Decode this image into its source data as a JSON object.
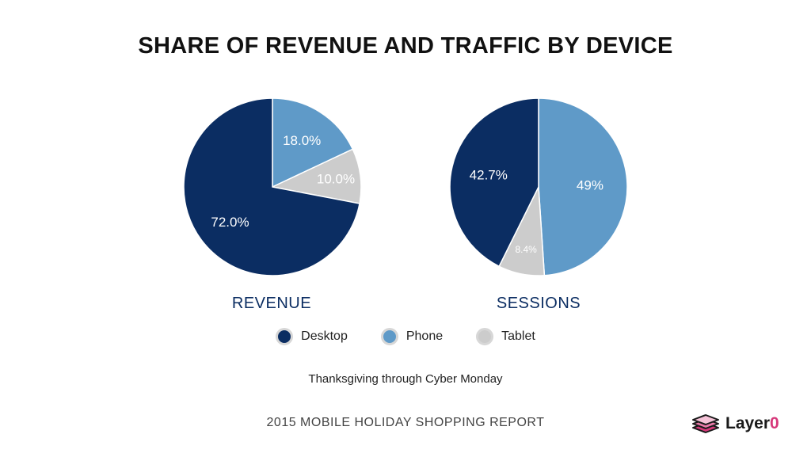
{
  "title": "SHARE OF REVENUE AND TRAFFIC BY DEVICE",
  "chart_data": [
    {
      "type": "pie",
      "title": "REVENUE",
      "slices": [
        {
          "label": "Phone",
          "value": 18.0,
          "display": "18.0%",
          "color": "#5f9ac8"
        },
        {
          "label": "Tablet",
          "value": 10.0,
          "display": "10.0%",
          "color": "#cccccc"
        },
        {
          "label": "Desktop",
          "value": 72.0,
          "display": "72.0%",
          "color": "#0b2d62"
        }
      ]
    },
    {
      "type": "pie",
      "title": "SESSIONS",
      "slices": [
        {
          "label": "Phone",
          "value": 49,
          "display": "49%",
          "color": "#5f9ac8"
        },
        {
          "label": "Tablet",
          "value": 8.4,
          "display": "8.4%",
          "color": "#cccccc"
        },
        {
          "label": "Desktop",
          "value": 42.7,
          "display": "42.7%",
          "color": "#0b2d62"
        }
      ]
    }
  ],
  "legend": [
    {
      "label": "Desktop",
      "color": "#0b2d62"
    },
    {
      "label": "Phone",
      "color": "#5f9ac8"
    },
    {
      "label": "Tablet",
      "color": "#cccccc"
    }
  ],
  "subtitle": "Thanksgiving through Cyber Monday",
  "footer": "2015 MOBILE HOLIDAY SHOPPING REPORT",
  "logo": {
    "text": "Layer",
    "accent": "0",
    "icon": "layers-icon"
  }
}
